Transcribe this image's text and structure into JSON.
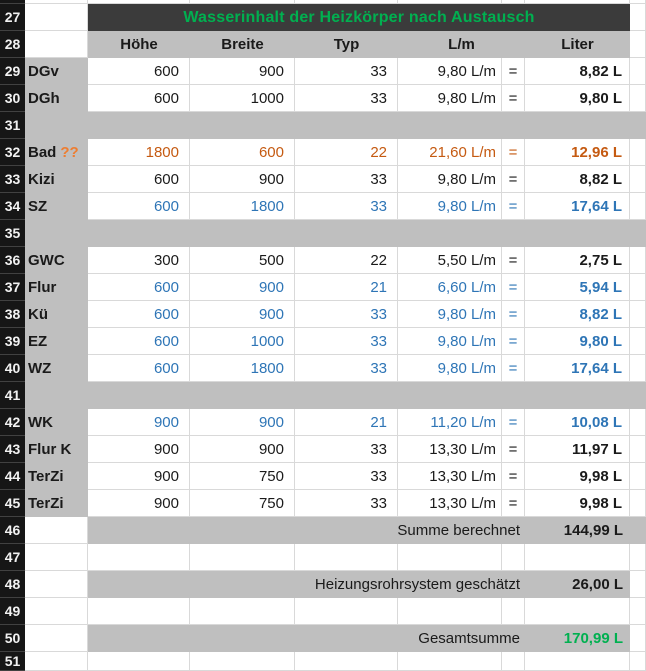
{
  "colors": {
    "green": "#00B050",
    "blue": "#2E75B6",
    "orange": "#C55A11",
    "orange_light": "#ED7D31",
    "band_dark": "#3B3B3B",
    "band_gray": "#BFBFBF",
    "rownum_bg": "#161616"
  },
  "rows": [
    {
      "kind": "sliver"
    },
    {
      "kind": "title",
      "num": "27",
      "title": "Wasserinhalt der Heizkörper nach Austausch"
    },
    {
      "kind": "header",
      "num": "28",
      "hohe": "Höhe",
      "breite": "Breite",
      "typ": "Typ",
      "lm": "L/m",
      "liter": "Liter"
    },
    {
      "kind": "data",
      "num": "29",
      "label": "DGv",
      "color": "black",
      "hohe": "600",
      "breite": "900",
      "typ": "33",
      "lm": "9,80 L/m",
      "eq": "=",
      "liter": "8,82 L"
    },
    {
      "kind": "data",
      "num": "30",
      "label": "DGh",
      "color": "black",
      "hohe": "600",
      "breite": "1000",
      "typ": "33",
      "lm": "9,80 L/m",
      "eq": "=",
      "liter": "9,80 L"
    },
    {
      "kind": "spacer",
      "num": "31"
    },
    {
      "kind": "data",
      "num": "32",
      "label": "Bad",
      "label_suffix": "??",
      "color": "orange",
      "hohe": "1800",
      "breite": "600",
      "typ": "22",
      "lm": "21,60 L/m",
      "eq": "=",
      "liter": "12,96 L"
    },
    {
      "kind": "data",
      "num": "33",
      "label": "Kizi",
      "color": "black",
      "hohe": "600",
      "breite": "900",
      "typ": "33",
      "lm": "9,80 L/m",
      "eq": "=",
      "liter": "8,82 L"
    },
    {
      "kind": "data",
      "num": "34",
      "label": "SZ",
      "color": "blue",
      "hohe": "600",
      "breite": "1800",
      "typ": "33",
      "lm": "9,80 L/m",
      "eq": "=",
      "liter": "17,64 L"
    },
    {
      "kind": "spacer",
      "num": "35"
    },
    {
      "kind": "data",
      "num": "36",
      "label": "GWC",
      "color": "black",
      "hohe": "300",
      "breite": "500",
      "typ": "22",
      "lm": "5,50 L/m",
      "eq": "=",
      "liter": "2,75 L"
    },
    {
      "kind": "data",
      "num": "37",
      "label": "Flur",
      "color": "blue",
      "hohe": "600",
      "breite": "900",
      "typ": "21",
      "lm": "6,60 L/m",
      "eq": "=",
      "liter": "5,94 L"
    },
    {
      "kind": "data",
      "num": "38",
      "label": "Kü",
      "color": "blue",
      "hohe": "600",
      "breite": "900",
      "typ": "33",
      "lm": "9,80 L/m",
      "eq": "=",
      "liter": "8,82 L"
    },
    {
      "kind": "data",
      "num": "39",
      "label": "EZ",
      "color": "blue",
      "hohe": "600",
      "breite": "1000",
      "typ": "33",
      "lm": "9,80 L/m",
      "eq": "=",
      "liter": "9,80 L"
    },
    {
      "kind": "data",
      "num": "40",
      "label": "WZ",
      "color": "blue",
      "hohe": "600",
      "breite": "1800",
      "typ": "33",
      "lm": "9,80 L/m",
      "eq": "=",
      "liter": "17,64 L"
    },
    {
      "kind": "spacer",
      "num": "41"
    },
    {
      "kind": "data",
      "num": "42",
      "label": "WK",
      "color": "blue",
      "hohe": "900",
      "breite": "900",
      "typ": "21",
      "lm": "11,20 L/m",
      "eq": "=",
      "liter": "10,08 L"
    },
    {
      "kind": "data",
      "num": "43",
      "label": "Flur K",
      "color": "black",
      "hohe": "900",
      "breite": "900",
      "typ": "33",
      "lm": "13,30 L/m",
      "eq": "=",
      "liter": "11,97 L"
    },
    {
      "kind": "data",
      "num": "44",
      "label": "TerZi",
      "color": "black",
      "hohe": "900",
      "breite": "750",
      "typ": "33",
      "lm": "13,30 L/m",
      "eq": "=",
      "liter": "9,98 L"
    },
    {
      "kind": "data",
      "num": "45",
      "label": "TerZi",
      "color": "black",
      "hohe": "900",
      "breite": "750",
      "typ": "33",
      "lm": "13,30 L/m",
      "eq": "=",
      "liter": "9,98 L"
    },
    {
      "kind": "summary",
      "num": "46",
      "label": "Summe berechnet",
      "value": "144,99 L",
      "value_color": "black",
      "full_right": true
    },
    {
      "kind": "blank",
      "num": "47"
    },
    {
      "kind": "summary",
      "num": "48",
      "label": "Heizungsrohrsystem geschätzt",
      "value": "26,00 L",
      "value_color": "black"
    },
    {
      "kind": "blank",
      "num": "49"
    },
    {
      "kind": "summary",
      "num": "50",
      "label": "Gesamtsumme",
      "value": "170,99 L",
      "value_color": "green"
    },
    {
      "kind": "blank",
      "num": "51",
      "partial": true
    }
  ]
}
